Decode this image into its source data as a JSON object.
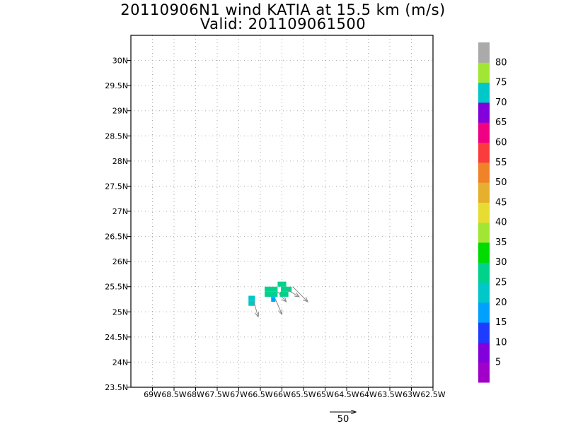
{
  "chart_data": {
    "type": "heatmap",
    "title": "20110906N1 wind KATIA at 15.5 km (m/s)",
    "subtitle": "Valid: 201109061500",
    "xlim": [
      -69.5,
      -62.5
    ],
    "ylim": [
      23.5,
      30.5
    ],
    "x_ticks": [
      {
        "value": -69.0,
        "label": "69W"
      },
      {
        "value": -68.5,
        "label": "68.5W"
      },
      {
        "value": -68.0,
        "label": "68W"
      },
      {
        "value": -67.5,
        "label": "67.5W"
      },
      {
        "value": -67.0,
        "label": "67W"
      },
      {
        "value": -66.5,
        "label": "66.5W"
      },
      {
        "value": -66.0,
        "label": "66W"
      },
      {
        "value": -65.5,
        "label": "65.5W"
      },
      {
        "value": -65.0,
        "label": "65W"
      },
      {
        "value": -64.5,
        "label": "64.5W"
      },
      {
        "value": -64.0,
        "label": "64W"
      },
      {
        "value": -63.5,
        "label": "63.5W"
      },
      {
        "value": -63.0,
        "label": "63W"
      },
      {
        "value": -62.5,
        "label": "62.5W"
      }
    ],
    "y_ticks": [
      {
        "value": 23.5,
        "label": "23.5N"
      },
      {
        "value": 24.0,
        "label": "24N"
      },
      {
        "value": 24.5,
        "label": "24.5N"
      },
      {
        "value": 25.0,
        "label": "25N"
      },
      {
        "value": 25.5,
        "label": "25.5N"
      },
      {
        "value": 26.0,
        "label": "26N"
      },
      {
        "value": 26.5,
        "label": "26.5N"
      },
      {
        "value": 27.0,
        "label": "27N"
      },
      {
        "value": 27.5,
        "label": "27.5N"
      },
      {
        "value": 28.0,
        "label": "28N"
      },
      {
        "value": 28.5,
        "label": "28.5N"
      },
      {
        "value": 29.0,
        "label": "29N"
      },
      {
        "value": 29.5,
        "label": "29.5N"
      },
      {
        "value": 30.0,
        "label": "30N"
      }
    ],
    "grid": true,
    "cells": [
      {
        "lon": -66.7,
        "lat": 25.27,
        "dlon": 0.15,
        "dlat": 0.1,
        "speed": 20
      },
      {
        "lon": -66.7,
        "lat": 25.17,
        "dlon": 0.15,
        "dlat": 0.1,
        "speed": 20
      },
      {
        "lon": -66.25,
        "lat": 25.45,
        "dlon": 0.3,
        "dlat": 0.1,
        "speed": 27
      },
      {
        "lon": -66.25,
        "lat": 25.35,
        "dlon": 0.3,
        "dlat": 0.1,
        "speed": 25
      },
      {
        "lon": -66.2,
        "lat": 25.25,
        "dlon": 0.1,
        "dlat": 0.1,
        "speed": 15
      },
      {
        "lon": -66.2,
        "lat": 25.3,
        "dlon": 0.1,
        "dlat": 0.05,
        "speed": 20
      },
      {
        "lon": -66.0,
        "lat": 25.55,
        "dlon": 0.2,
        "dlat": 0.1,
        "speed": 28
      },
      {
        "lon": -65.9,
        "lat": 25.45,
        "dlon": 0.25,
        "dlat": 0.1,
        "speed": 27
      },
      {
        "lon": -65.95,
        "lat": 25.35,
        "dlon": 0.2,
        "dlat": 0.1,
        "speed": 25
      }
    ],
    "vectors": [
      {
        "lon": -66.65,
        "lat": 25.2,
        "u": 0.1,
        "v": -0.3
      },
      {
        "lon": -66.15,
        "lat": 25.25,
        "u": 0.15,
        "v": -0.3
      },
      {
        "lon": -66.1,
        "lat": 25.4,
        "u": 0.2,
        "v": -0.2
      },
      {
        "lon": -65.9,
        "lat": 25.45,
        "u": 0.3,
        "v": -0.15
      },
      {
        "lon": -65.75,
        "lat": 25.5,
        "u": 0.35,
        "v": -0.3
      }
    ],
    "reference_vector": {
      "label": "50"
    },
    "colorbar": {
      "bins": [
        {
          "color": "#a000c8"
        },
        {
          "color": "#8200dc"
        },
        {
          "color": "#1e3cff"
        },
        {
          "color": "#00a0ff"
        },
        {
          "color": "#00c8c8"
        },
        {
          "color": "#00d28c"
        },
        {
          "color": "#00dc00"
        },
        {
          "color": "#a0e632"
        },
        {
          "color": "#e6dc32"
        },
        {
          "color": "#e6af2d"
        },
        {
          "color": "#f08228"
        },
        {
          "color": "#fa3c3c"
        },
        {
          "color": "#f00082"
        },
        {
          "color": "#8200dc"
        },
        {
          "color": "#00c8c8"
        },
        {
          "color": "#a0e632"
        },
        {
          "color": "#aaaaaa"
        }
      ],
      "labels": [
        "5",
        "10",
        "15",
        "20",
        "25",
        "30",
        "35",
        "40",
        "45",
        "50",
        "55",
        "60",
        "65",
        "70",
        "75",
        "80"
      ]
    }
  }
}
